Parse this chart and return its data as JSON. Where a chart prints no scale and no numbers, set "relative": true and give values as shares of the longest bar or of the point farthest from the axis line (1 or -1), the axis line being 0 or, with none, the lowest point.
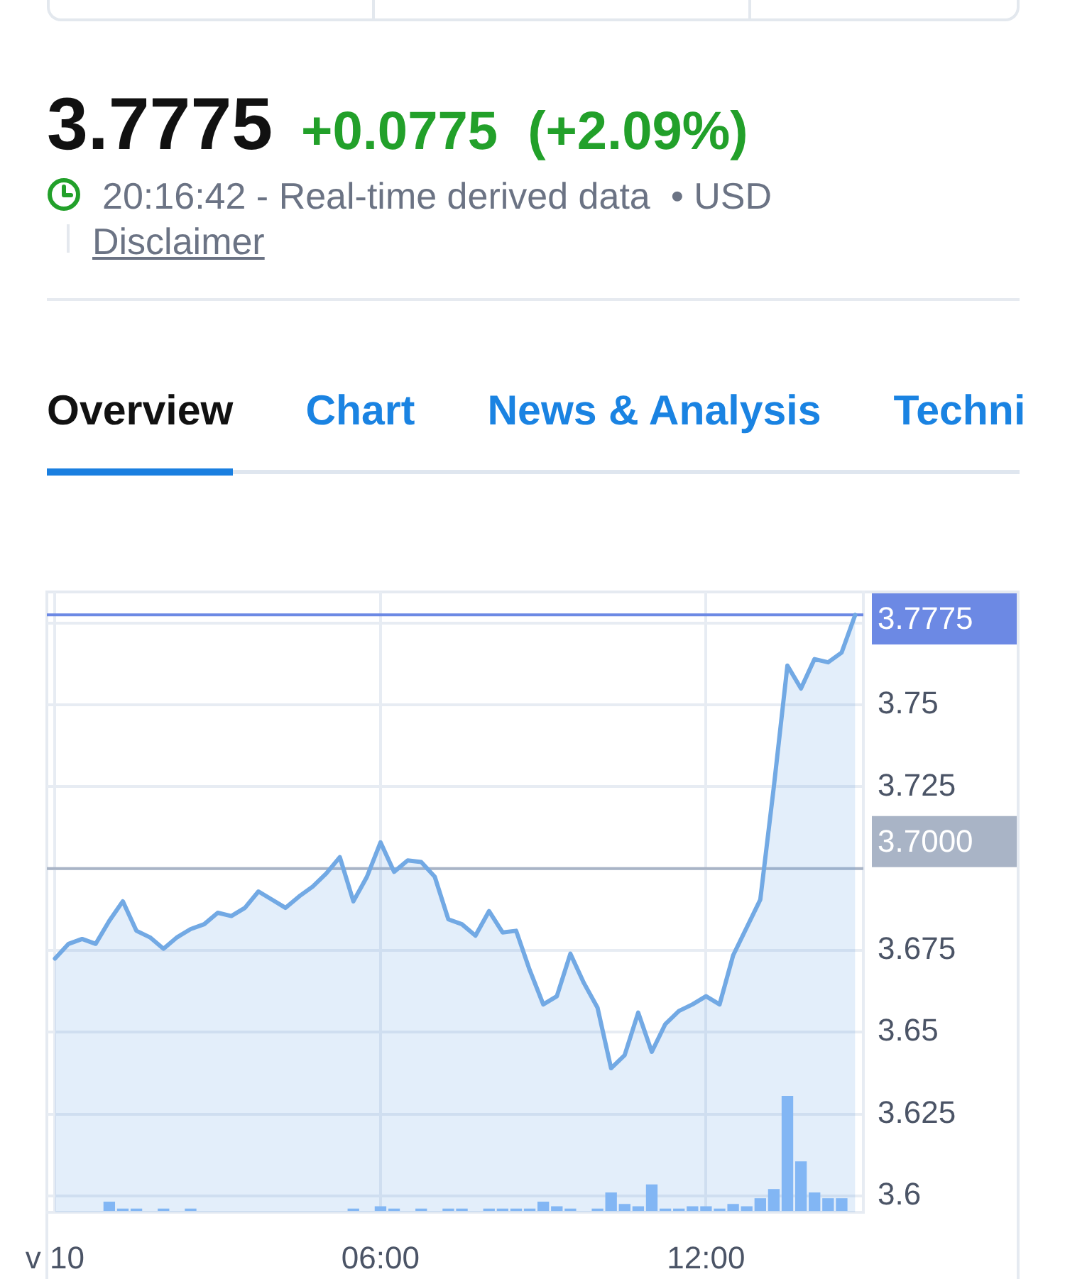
{
  "chart_data": [
    {
      "type": "area",
      "title": "3.7775",
      "subtitle": "+0.0775  (+2.09%)",
      "annotations": [
        "20:16:42 - Real-time derived data  • USD",
        "Disclaimer",
        "Overview",
        "Chart",
        "News & Analysis",
        "Techni"
      ],
      "x": [
        0,
        0.25,
        0.5,
        0.75,
        1,
        1.25,
        1.5,
        1.75,
        2,
        2.25,
        2.5,
        2.75,
        3,
        3.25,
        3.5,
        3.75,
        4,
        4.25,
        4.5,
        4.75,
        5,
        5.25,
        5.5,
        5.75,
        6,
        6.25,
        6.5,
        6.75,
        7,
        7.25,
        7.5,
        7.75,
        8,
        8.25,
        8.5,
        8.75,
        9,
        9.25,
        9.5,
        9.75,
        10,
        10.25,
        10.5,
        10.75,
        11,
        11.25,
        11.5,
        11.75,
        12,
        12.25,
        12.5,
        12.75,
        13,
        13.25,
        13.5,
        13.75,
        14,
        14.25,
        14.5,
        14.75
      ],
      "values": [
        3.6725,
        3.677,
        3.6785,
        3.677,
        3.684,
        3.69,
        3.681,
        3.679,
        3.6755,
        3.679,
        3.6815,
        3.683,
        3.6865,
        3.6855,
        3.688,
        3.693,
        3.6905,
        3.688,
        3.6915,
        3.6945,
        3.6985,
        3.7035,
        3.69,
        3.6975,
        3.708,
        3.699,
        3.7025,
        3.702,
        3.6975,
        3.6845,
        3.683,
        3.6795,
        3.687,
        3.6805,
        3.681,
        3.669,
        3.6585,
        3.661,
        3.674,
        3.665,
        3.6575,
        3.639,
        3.643,
        3.656,
        3.644,
        3.6525,
        3.6565,
        3.6585,
        3.661,
        3.6585,
        3.6735,
        3.682,
        3.6905,
        3.725,
        3.762,
        3.755,
        3.764,
        3.763,
        3.766,
        3.7775
      ],
      "color": "#72a9e4",
      "xlim": [
        -0.15,
        14.9
      ],
      "xticks": [
        {
          "value": 0,
          "label": "v 10"
        },
        {
          "value": 6,
          "label": "06:00"
        },
        {
          "value": 12,
          "label": "12:00"
        }
      ],
      "ylim": [
        3.595,
        3.7845
      ],
      "yticks": [
        3.6,
        3.625,
        3.65,
        3.675,
        {
          "value": 3.7,
          "label": null
        },
        3.725,
        3.75,
        {
          "value": 3.775,
          "label": null
        }
      ],
      "ref_lines": [
        {
          "axis": "y",
          "value": 3.7775,
          "label": "3.7775",
          "color": "#6c89e4"
        },
        {
          "axis": "y",
          "value": 3.7,
          "label": "3.7000",
          "color": "#a9b4c6"
        }
      ],
      "grid": true
    },
    {
      "type": "bar",
      "relative": true,
      "tick_labels": false,
      "x": [
        1,
        1.25,
        1.5,
        2,
        2.5,
        5.5,
        6,
        6.25,
        6.75,
        7.25,
        7.5,
        8,
        8.25,
        8.5,
        8.75,
        9,
        9.25,
        9.5,
        10,
        10.25,
        10.5,
        10.75,
        11,
        11.25,
        11.5,
        11.75,
        12,
        12.25,
        12.5,
        12.75,
        13,
        13.25,
        13.5,
        13.75,
        14,
        14.25,
        14.5
      ],
      "values": [
        0.08,
        0.02,
        0.02,
        0.02,
        0.02,
        0.02,
        0.04,
        0.02,
        0.02,
        0.02,
        0.02,
        0.02,
        0.02,
        0.02,
        0.02,
        0.08,
        0.04,
        0.02,
        0.02,
        0.16,
        0.06,
        0.04,
        0.23,
        0.02,
        0.02,
        0.04,
        0.04,
        0.02,
        0.06,
        0.04,
        0.11,
        0.19,
        1,
        0.43,
        0.16,
        0.11,
        0.11
      ],
      "color": "#82b6f4",
      "xlim": [
        -0.15,
        14.9
      ]
    }
  ]
}
